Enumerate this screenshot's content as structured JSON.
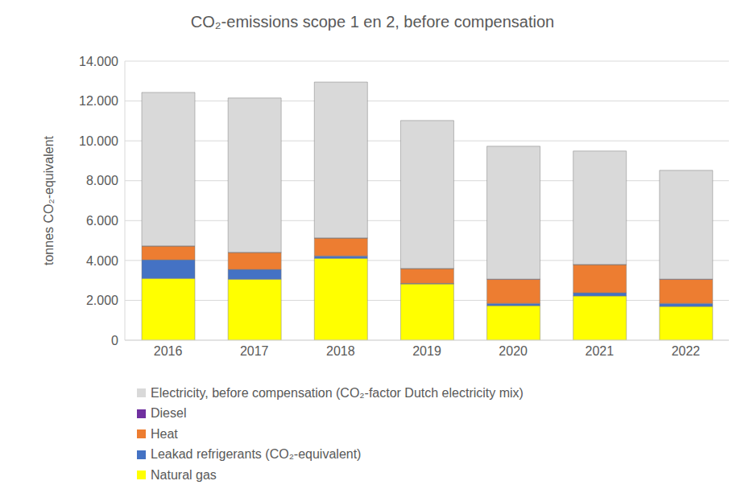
{
  "chart_data": {
    "type": "bar",
    "title": "CO₂-emissions scope 1 en 2, before compensation",
    "y_label": "tonnes CO₂-equivalent",
    "categories": [
      "2016",
      "2017",
      "2018",
      "2019",
      "2020",
      "2021",
      "2022"
    ],
    "stacked": true,
    "grid": true,
    "legend": "bottom",
    "ylim": [
      0,
      14000
    ],
    "yticks": [
      0,
      {
        "value": 2000,
        "label": "2.000"
      },
      {
        "value": 4000,
        "label": "4.000"
      },
      {
        "value": 6000,
        "label": "6.000"
      },
      {
        "value": 8000,
        "label": "8.000"
      },
      {
        "value": 10000,
        "label": "10.000"
      },
      {
        "value": 12000,
        "label": "12.000"
      },
      {
        "value": 14000,
        "label": "14.000"
      }
    ],
    "series": [
      {
        "name": "Natural gas",
        "color": "#ffff00",
        "values": [
          3100,
          3060,
          4110,
          2820,
          1730,
          2220,
          1690
        ]
      },
      {
        "name": "Leakad refrigerants (CO₂-equivalent)",
        "color": "#4472c4",
        "values": [
          930,
          490,
          120,
          30,
          120,
          160,
          160
        ]
      },
      {
        "name": "Heat",
        "color": "#ed7d31",
        "values": [
          690,
          850,
          890,
          740,
          1210,
          1410,
          1210
        ]
      },
      {
        "name": "Diesel",
        "color": "#7030a0",
        "values": [
          10,
          10,
          10,
          10,
          10,
          10,
          10
        ]
      },
      {
        "name": "Electricity, before compensation (CO₂-factor Dutch electricity mix)",
        "color": "#d9d9d9",
        "values": [
          7700,
          7740,
          7820,
          7420,
          6660,
          5690,
          5450
        ]
      }
    ]
  }
}
